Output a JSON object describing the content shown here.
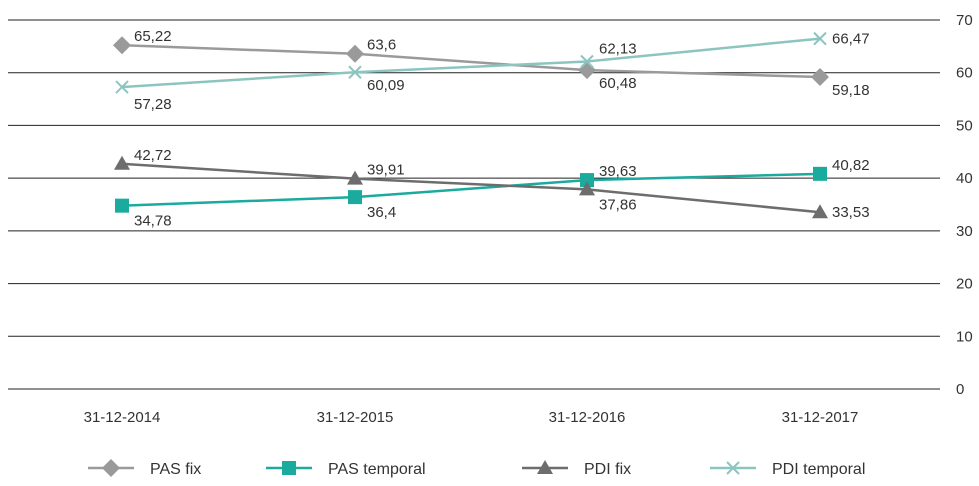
{
  "chart_data": {
    "type": "line",
    "title": "",
    "xlabel": "",
    "ylabel": "",
    "categories": [
      "31-12-2014",
      "31-12-2015",
      "31-12-2016",
      "31-12-2017"
    ],
    "ylim": [
      0,
      70
    ],
    "yticks": [
      0,
      10,
      20,
      30,
      40,
      50,
      60,
      70
    ],
    "grid": true,
    "legend_position": "bottom",
    "series": [
      {
        "name": "PAS fix",
        "values": [
          65.22,
          63.6,
          60.48,
          59.18
        ],
        "labels": [
          "65,22",
          "63,6",
          "60,48",
          "59,18"
        ],
        "color": "#9a9a9a",
        "marker": "diamond"
      },
      {
        "name": "PAS temporal",
        "values": [
          34.78,
          36.4,
          39.63,
          40.82
        ],
        "labels": [
          "34,78",
          "36,4",
          "39,63",
          "40,82"
        ],
        "color": "#1aaa9e",
        "marker": "square"
      },
      {
        "name": "PDI fix",
        "values": [
          42.72,
          39.91,
          37.86,
          33.53
        ],
        "labels": [
          "42,72",
          "39,91",
          "37,86",
          "33,53"
        ],
        "color": "#6d6d6d",
        "marker": "triangle"
      },
      {
        "name": "PDI temporal",
        "values": [
          57.28,
          60.09,
          62.13,
          66.47
        ],
        "labels": [
          "57,28",
          "60,09",
          "62,13",
          "66,47"
        ],
        "color": "#8cc5c0",
        "marker": "x"
      }
    ]
  }
}
